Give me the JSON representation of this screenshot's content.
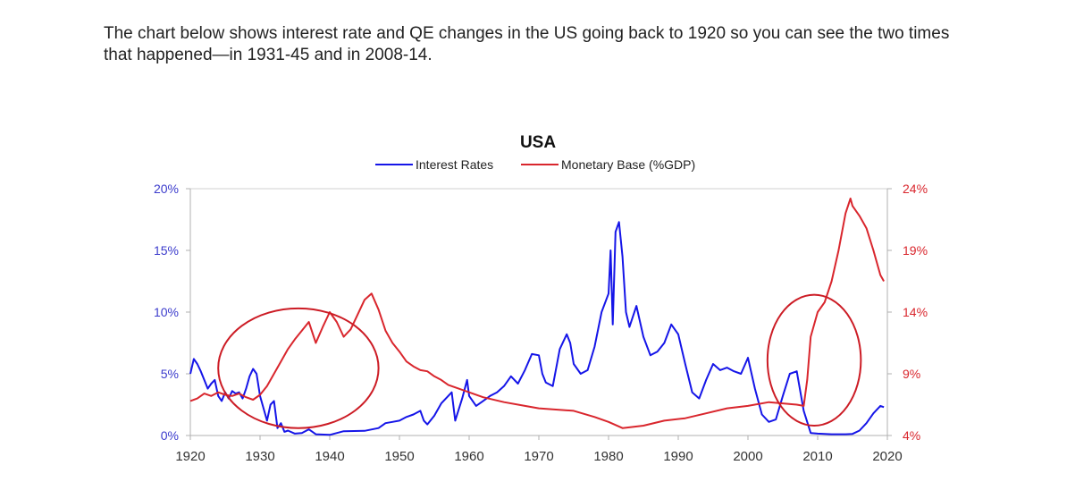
{
  "intro": {
    "line1": "The chart below shows interest rate and QE changes in the US going back to 1920 so you can see the two times",
    "line2": "that happened—in 1931-45 and in 2008-14."
  },
  "chart_data": {
    "type": "line",
    "title": "USA",
    "xlim": [
      1920,
      2020
    ],
    "x_ticks": [
      "1920",
      "1930",
      "1940",
      "1950",
      "1960",
      "1970",
      "1980",
      "1990",
      "2000",
      "2010",
      "2020"
    ],
    "y_left": {
      "ylim": [
        0,
        20
      ],
      "ticks": [
        "0%",
        "5%",
        "10%",
        "15%",
        "20%"
      ],
      "color": "#3b3bcc"
    },
    "y_right": {
      "ylim": [
        4,
        24
      ],
      "ticks": [
        "4%",
        "9%",
        "14%",
        "19%",
        "24%"
      ],
      "color": "#d9262d"
    },
    "legend_placement": "top-center",
    "series": [
      {
        "name": "Interest Rates",
        "axis": "left",
        "color": "#1515e8",
        "points": [
          [
            1920,
            5.0
          ],
          [
            1920.5,
            6.2
          ],
          [
            1921,
            5.8
          ],
          [
            1921.5,
            5.2
          ],
          [
            1922,
            4.5
          ],
          [
            1922.5,
            3.8
          ],
          [
            1923,
            4.2
          ],
          [
            1923.5,
            4.5
          ],
          [
            1924,
            3.2
          ],
          [
            1924.5,
            2.8
          ],
          [
            1925,
            3.5
          ],
          [
            1925.5,
            3.0
          ],
          [
            1926,
            3.6
          ],
          [
            1926.5,
            3.4
          ],
          [
            1927,
            3.5
          ],
          [
            1927.5,
            3.0
          ],
          [
            1928,
            3.8
          ],
          [
            1928.5,
            4.8
          ],
          [
            1929,
            5.4
          ],
          [
            1929.5,
            5.0
          ],
          [
            1930,
            3.2
          ],
          [
            1930.5,
            2.2
          ],
          [
            1931,
            1.2
          ],
          [
            1931.5,
            2.5
          ],
          [
            1932,
            2.8
          ],
          [
            1932.5,
            0.6
          ],
          [
            1933,
            1.0
          ],
          [
            1933.5,
            0.3
          ],
          [
            1934,
            0.4
          ],
          [
            1935,
            0.15
          ],
          [
            1936,
            0.2
          ],
          [
            1937,
            0.5
          ],
          [
            1938,
            0.1
          ],
          [
            1940,
            0.05
          ],
          [
            1942,
            0.35
          ],
          [
            1945,
            0.38
          ],
          [
            1947,
            0.6
          ],
          [
            1948,
            1.0
          ],
          [
            1949,
            1.1
          ],
          [
            1950,
            1.2
          ],
          [
            1951,
            1.5
          ],
          [
            1952,
            1.7
          ],
          [
            1953,
            2.0
          ],
          [
            1953.5,
            1.2
          ],
          [
            1954,
            0.9
          ],
          [
            1955,
            1.6
          ],
          [
            1956,
            2.6
          ],
          [
            1957,
            3.2
          ],
          [
            1957.5,
            3.5
          ],
          [
            1958,
            1.2
          ],
          [
            1959,
            3.0
          ],
          [
            1959.7,
            4.5
          ],
          [
            1960,
            3.2
          ],
          [
            1961,
            2.4
          ],
          [
            1962,
            2.8
          ],
          [
            1963,
            3.2
          ],
          [
            1964,
            3.5
          ],
          [
            1965,
            4.0
          ],
          [
            1966,
            4.8
          ],
          [
            1967,
            4.2
          ],
          [
            1968,
            5.3
          ],
          [
            1969,
            6.6
          ],
          [
            1970,
            6.5
          ],
          [
            1970.5,
            5.0
          ],
          [
            1971,
            4.3
          ],
          [
            1972,
            4.0
          ],
          [
            1973,
            7.0
          ],
          [
            1974,
            8.2
          ],
          [
            1974.5,
            7.5
          ],
          [
            1975,
            5.8
          ],
          [
            1976,
            5.0
          ],
          [
            1977,
            5.3
          ],
          [
            1978,
            7.2
          ],
          [
            1979,
            10.0
          ],
          [
            1980,
            11.5
          ],
          [
            1980.3,
            15.0
          ],
          [
            1980.6,
            9.0
          ],
          [
            1981,
            16.5
          ],
          [
            1981.5,
            17.3
          ],
          [
            1982,
            14.5
          ],
          [
            1982.5,
            10.0
          ],
          [
            1983,
            8.8
          ],
          [
            1984,
            10.5
          ],
          [
            1985,
            8.0
          ],
          [
            1986,
            6.5
          ],
          [
            1987,
            6.8
          ],
          [
            1988,
            7.5
          ],
          [
            1989,
            9.0
          ],
          [
            1990,
            8.2
          ],
          [
            1991,
            5.8
          ],
          [
            1992,
            3.5
          ],
          [
            1993,
            3.0
          ],
          [
            1994,
            4.5
          ],
          [
            1995,
            5.8
          ],
          [
            1996,
            5.3
          ],
          [
            1997,
            5.5
          ],
          [
            1998,
            5.2
          ],
          [
            1999,
            5.0
          ],
          [
            2000,
            6.3
          ],
          [
            2001,
            3.8
          ],
          [
            2002,
            1.7
          ],
          [
            2003,
            1.1
          ],
          [
            2004,
            1.3
          ],
          [
            2005,
            3.2
          ],
          [
            2006,
            5.0
          ],
          [
            2007,
            5.2
          ],
          [
            2008,
            2.0
          ],
          [
            2009,
            0.2
          ],
          [
            2010,
            0.15
          ],
          [
            2012,
            0.1
          ],
          [
            2014,
            0.1
          ],
          [
            2015,
            0.13
          ],
          [
            2016,
            0.4
          ],
          [
            2017,
            1.0
          ],
          [
            2018,
            1.8
          ],
          [
            2019,
            2.4
          ],
          [
            2019.5,
            2.3
          ]
        ]
      },
      {
        "name": "Monetary Base (%GDP)",
        "axis": "right",
        "color": "#d9262d",
        "points": [
          [
            1920,
            6.8
          ],
          [
            1921,
            7.0
          ],
          [
            1922,
            7.4
          ],
          [
            1923,
            7.2
          ],
          [
            1924,
            7.5
          ],
          [
            1925,
            7.3
          ],
          [
            1926,
            7.2
          ],
          [
            1927,
            7.4
          ],
          [
            1928,
            7.1
          ],
          [
            1929,
            6.9
          ],
          [
            1930,
            7.3
          ],
          [
            1931,
            8.0
          ],
          [
            1932,
            9.0
          ],
          [
            1933,
            10.0
          ],
          [
            1934,
            11.0
          ],
          [
            1935,
            11.8
          ],
          [
            1936,
            12.5
          ],
          [
            1937,
            13.2
          ],
          [
            1938,
            11.5
          ],
          [
            1939,
            12.8
          ],
          [
            1940,
            14.0
          ],
          [
            1941,
            13.2
          ],
          [
            1942,
            12.0
          ],
          [
            1943,
            12.6
          ],
          [
            1944,
            13.8
          ],
          [
            1945,
            15.0
          ],
          [
            1946,
            15.5
          ],
          [
            1947,
            14.2
          ],
          [
            1948,
            12.5
          ],
          [
            1949,
            11.5
          ],
          [
            1950,
            10.8
          ],
          [
            1951,
            10.0
          ],
          [
            1952,
            9.6
          ],
          [
            1953,
            9.3
          ],
          [
            1954,
            9.2
          ],
          [
            1955,
            8.8
          ],
          [
            1956,
            8.5
          ],
          [
            1957,
            8.1
          ],
          [
            1958,
            7.9
          ],
          [
            1959,
            7.7
          ],
          [
            1960,
            7.5
          ],
          [
            1962,
            7.1
          ],
          [
            1965,
            6.7
          ],
          [
            1968,
            6.4
          ],
          [
            1970,
            6.2
          ],
          [
            1975,
            6.0
          ],
          [
            1978,
            5.5
          ],
          [
            1980,
            5.1
          ],
          [
            1982,
            4.6
          ],
          [
            1985,
            4.8
          ],
          [
            1988,
            5.2
          ],
          [
            1991,
            5.4
          ],
          [
            1994,
            5.8
          ],
          [
            1997,
            6.2
          ],
          [
            2000,
            6.4
          ],
          [
            2003,
            6.7
          ],
          [
            2005,
            6.6
          ],
          [
            2007,
            6.5
          ],
          [
            2008,
            6.4
          ],
          [
            2008.5,
            8.5
          ],
          [
            2009,
            12.0
          ],
          [
            2010,
            14.0
          ],
          [
            2011,
            14.8
          ],
          [
            2012,
            16.5
          ],
          [
            2013,
            19.0
          ],
          [
            2014,
            22.0
          ],
          [
            2014.7,
            23.2
          ],
          [
            2015,
            22.6
          ],
          [
            2016,
            21.8
          ],
          [
            2017,
            20.8
          ],
          [
            2018,
            19.0
          ],
          [
            2019,
            17.0
          ],
          [
            2019.5,
            16.5
          ]
        ]
      }
    ],
    "annotations": [
      {
        "shape": "ellipse",
        "color": "#cc1c25",
        "x_range": [
          1924,
          1947
        ],
        "y_range_left": [
          0.6,
          10.3
        ]
      },
      {
        "shape": "ellipse",
        "color": "#cc1c25",
        "x_range": [
          2002.8,
          2016.2
        ],
        "y_range_left": [
          0.8,
          11.4
        ]
      }
    ]
  }
}
